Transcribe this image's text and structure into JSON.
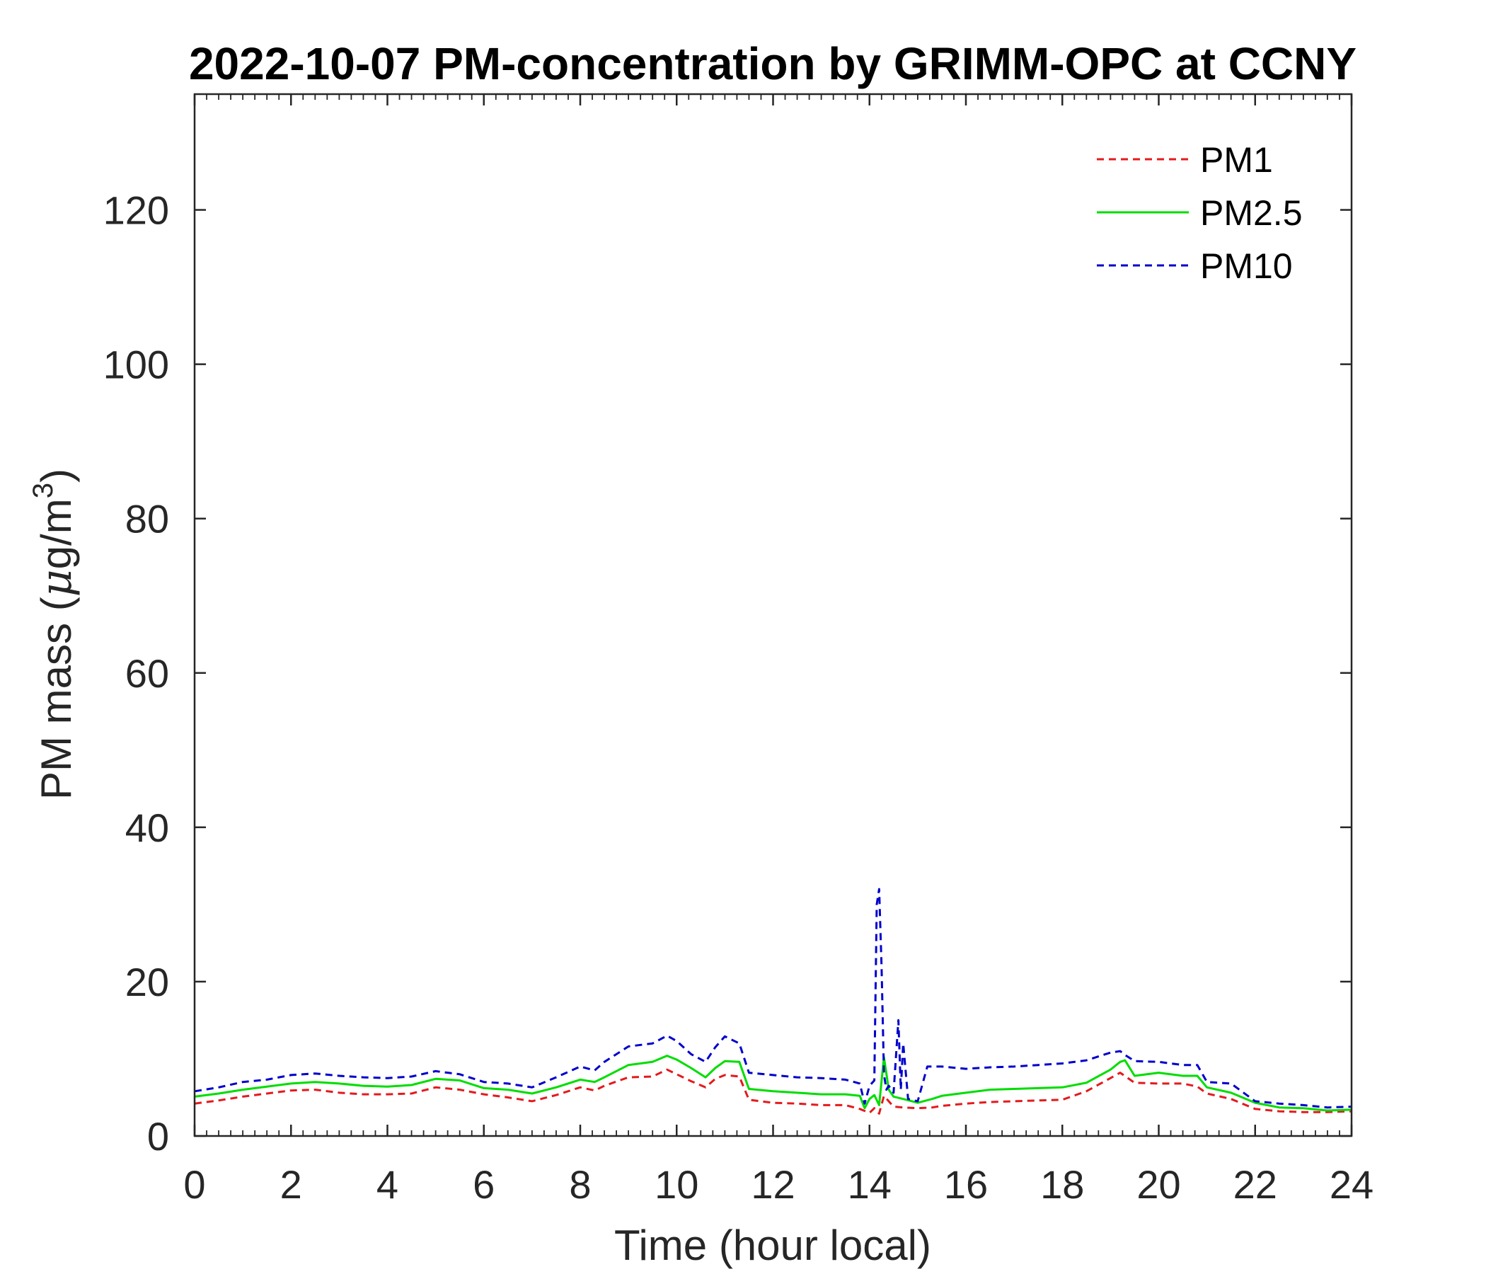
{
  "chart_data": {
    "type": "line",
    "title": "2022-10-07 PM-concentration by GRIMM-OPC at CCNY",
    "xlabel": "Time (hour local)",
    "ylabel_prefix": "PM mass (",
    "ylabel_mu": "μ",
    "ylabel_unit": "g/m",
    "ylabel_sup": "3",
    "ylabel_suffix": ")",
    "xlim": [
      0,
      24
    ],
    "ylim": [
      0,
      135
    ],
    "xticks": [
      0,
      2,
      4,
      6,
      8,
      10,
      12,
      14,
      16,
      18,
      20,
      22,
      24
    ],
    "yticks": [
      0,
      20,
      40,
      60,
      80,
      100,
      120
    ],
    "grid": false,
    "legend_position": "top-right",
    "series": [
      {
        "name": "PM1",
        "color": "#e41a1c",
        "style": "dashed",
        "x": [
          0,
          0.5,
          1,
          1.5,
          2,
          2.5,
          3,
          3.5,
          4,
          4.5,
          5,
          5.5,
          6,
          6.5,
          7,
          7.5,
          8,
          8.3,
          8.5,
          9,
          9.5,
          9.8,
          10,
          10.3,
          10.6,
          10.8,
          11,
          11.3,
          11.5,
          12,
          12.5,
          13,
          13.5,
          13.8,
          14,
          14.1,
          14.2,
          14.3,
          14.5,
          14.7,
          15,
          15.3,
          15.5,
          16,
          16.5,
          17,
          17.5,
          18,
          18.5,
          19,
          19.2,
          19.5,
          20,
          20.5,
          20.8,
          21,
          21.5,
          22,
          22.5,
          23,
          23.5,
          24
        ],
        "y": [
          4.2,
          4.6,
          5.1,
          5.5,
          5.9,
          6.0,
          5.6,
          5.4,
          5.4,
          5.5,
          6.3,
          6.0,
          5.4,
          5.0,
          4.5,
          5.3,
          6.3,
          5.9,
          6.5,
          7.6,
          7.7,
          8.6,
          8.0,
          7.1,
          6.3,
          7.4,
          7.9,
          7.7,
          4.7,
          4.3,
          4.2,
          4.0,
          4.0,
          3.5,
          3.0,
          3.6,
          2.9,
          5.2,
          3.8,
          3.7,
          3.6,
          3.7,
          3.9,
          4.2,
          4.4,
          4.5,
          4.6,
          4.7,
          5.8,
          7.5,
          8.2,
          6.9,
          6.8,
          6.8,
          6.4,
          5.5,
          4.8,
          3.5,
          3.2,
          3.1,
          3.1,
          3.2
        ]
      },
      {
        "name": "PM2.5",
        "color": "#00dd00",
        "style": "solid",
        "x": [
          0,
          0.5,
          1,
          1.5,
          2,
          2.5,
          3,
          3.5,
          4,
          4.5,
          5,
          5.5,
          6,
          6.5,
          7,
          7.5,
          8,
          8.3,
          8.5,
          9,
          9.5,
          9.8,
          10,
          10.3,
          10.6,
          10.8,
          11,
          11.3,
          11.5,
          12,
          12.5,
          13,
          13.5,
          13.8,
          13.9,
          14.0,
          14.1,
          14.2,
          14.3,
          14.4,
          14.5,
          14.7,
          15,
          15.3,
          15.5,
          16,
          16.5,
          17,
          17.5,
          18,
          18.5,
          19,
          19.2,
          19.3,
          19.5,
          20,
          20.5,
          20.8,
          21,
          21.5,
          22,
          22.5,
          23,
          23.5,
          24
        ],
        "y": [
          5.1,
          5.5,
          6.0,
          6.4,
          6.8,
          7.0,
          6.8,
          6.5,
          6.4,
          6.6,
          7.4,
          7.2,
          6.2,
          6.0,
          5.5,
          6.3,
          7.3,
          7.0,
          7.6,
          9.2,
          9.6,
          10.4,
          9.9,
          8.8,
          7.6,
          8.8,
          9.7,
          9.6,
          6.1,
          5.8,
          5.6,
          5.4,
          5.4,
          5.2,
          3.6,
          4.8,
          5.3,
          4.0,
          10.2,
          6.0,
          5.1,
          4.8,
          4.3,
          4.8,
          5.2,
          5.6,
          6.0,
          6.1,
          6.2,
          6.3,
          6.9,
          8.6,
          9.6,
          9.8,
          7.8,
          8.2,
          7.8,
          7.8,
          6.3,
          5.6,
          4.3,
          3.7,
          3.6,
          3.3,
          3.4
        ]
      },
      {
        "name": "PM10",
        "color": "#0000cc",
        "style": "dashed",
        "x": [
          0,
          0.5,
          1,
          1.5,
          2,
          2.5,
          3,
          3.5,
          4,
          4.5,
          5,
          5.5,
          6,
          6.5,
          7,
          7.5,
          8,
          8.3,
          8.5,
          9,
          9.5,
          9.8,
          10,
          10.3,
          10.6,
          10.8,
          11,
          11.3,
          11.5,
          12,
          12.5,
          13,
          13.5,
          13.8,
          13.9,
          14.0,
          14.1,
          14.15,
          14.2,
          14.25,
          14.3,
          14.35,
          14.4,
          14.5,
          14.6,
          14.65,
          14.7,
          14.8,
          15,
          15.2,
          15.5,
          16,
          16.5,
          17,
          17.5,
          18,
          18.5,
          19,
          19.2,
          19.3,
          19.5,
          20,
          20.5,
          20.8,
          21,
          21.5,
          22,
          22.5,
          23,
          23.5,
          24
        ],
        "y": [
          5.8,
          6.3,
          7.0,
          7.3,
          7.9,
          8.1,
          7.8,
          7.6,
          7.5,
          7.7,
          8.4,
          8.0,
          7.0,
          6.8,
          6.3,
          7.6,
          9.0,
          8.5,
          9.6,
          11.6,
          12.0,
          13.0,
          12.3,
          10.6,
          9.6,
          11.5,
          12.9,
          12.0,
          8.2,
          7.9,
          7.6,
          7.5,
          7.3,
          6.8,
          4.2,
          6.5,
          7.2,
          30.0,
          32.0,
          22.0,
          8.0,
          6.0,
          6.5,
          5.6,
          15.0,
          6.0,
          12.0,
          4.8,
          4.5,
          9.0,
          9.0,
          8.7,
          8.9,
          9.0,
          9.2,
          9.4,
          9.8,
          10.8,
          11.0,
          10.5,
          9.7,
          9.6,
          9.2,
          9.2,
          7.0,
          6.8,
          4.5,
          4.2,
          4.0,
          3.7,
          3.8
        ]
      }
    ]
  }
}
